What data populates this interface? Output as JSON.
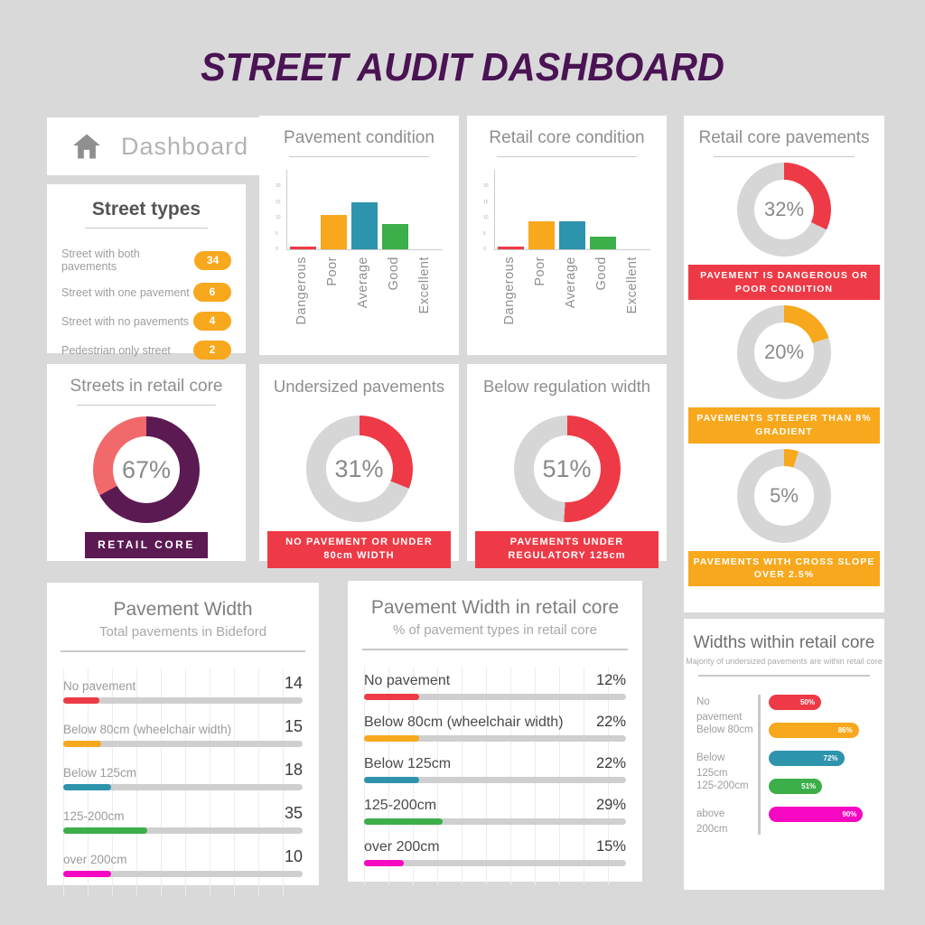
{
  "page": {
    "title": "STREET AUDIT DASHBOARD"
  },
  "colors": {
    "red": "#ee3a46",
    "orange": "#f7a81d",
    "teal": "#2e93ac",
    "green": "#3cae4a",
    "magenta": "#f607c2",
    "purple": "#5b1a52",
    "salmon": "#f2696b",
    "ring_gray": "#d6d6d6",
    "title": "#4a1353"
  },
  "dashboard_card": {
    "label": "Dashboard",
    "icon": "home-icon"
  },
  "street_types": {
    "title": "Street types",
    "items": [
      {
        "label": "Street with both pavements",
        "value": "34"
      },
      {
        "label": "Street with one pavement",
        "value": "6"
      },
      {
        "label": "Street with no pavements",
        "value": "4"
      },
      {
        "label": "Pedestrian only street",
        "value": "2"
      }
    ]
  },
  "chart_data": [
    {
      "id": "pavement_condition",
      "type": "bar",
      "title": "Pavement condition",
      "categories": [
        "Dangerous",
        "Poor",
        "Average",
        "Good",
        "Excellent"
      ],
      "values": [
        1,
        11,
        15,
        8,
        0
      ],
      "colors": [
        "#ee3a46",
        "#f7a81d",
        "#2e93ac",
        "#3cae4a",
        "#2e93ac"
      ],
      "ylim": [
        0,
        20
      ],
      "yticks": [
        0,
        5,
        10,
        15,
        20
      ],
      "grid": false,
      "legend": "none"
    },
    {
      "id": "retail_core_condition",
      "type": "bar",
      "title": "Retail core condition",
      "categories": [
        "Dangerous",
        "Poor",
        "Average",
        "Good",
        "Excellent"
      ],
      "values": [
        1,
        9,
        9,
        4,
        0
      ],
      "colors": [
        "#ee3a46",
        "#f7a81d",
        "#2e93ac",
        "#3cae4a",
        "#2e93ac"
      ],
      "ylim": [
        0,
        20
      ],
      "yticks": [
        0,
        5,
        10,
        15,
        20
      ],
      "grid": false,
      "legend": "none"
    },
    {
      "id": "streets_in_retail_core",
      "type": "donut",
      "title": "Streets in retail core",
      "value_pct": 67,
      "center_label": "67%",
      "segment_color": "#5b1a52",
      "remainder_color": "#f2696b",
      "badge": {
        "text": "RETAIL CORE",
        "color": "#5b1a52"
      }
    },
    {
      "id": "undersized_pavements",
      "type": "donut",
      "title": "Undersized pavements",
      "value_pct": 31,
      "center_label": "31%",
      "segment_color": "#ee3a46",
      "remainder_color": "#d6d6d6",
      "badge": {
        "text": "NO PAVEMENT OR UNDER 80cm WIDTH",
        "color": "#ee3a46"
      }
    },
    {
      "id": "below_regulation_width",
      "type": "donut",
      "title": "Below regulation width",
      "value_pct": 51,
      "center_label": "51%",
      "segment_color": "#ee3a46",
      "remainder_color": "#d6d6d6",
      "badge": {
        "text": "PAVEMENTS UNDER REGULATORY 125cm",
        "color": "#ee3a46"
      }
    },
    {
      "id": "retail_core_pavements",
      "type": "donut-group",
      "title": "Retail core pavements",
      "donuts": [
        {
          "value_pct": 32,
          "center_label": "32%",
          "segment_color": "#ee3a46",
          "remainder_color": "#d6d6d6",
          "badge": {
            "text": "PAVEMENT IS DANGEROUS OR POOR CONDITION",
            "color": "#ee3a46"
          }
        },
        {
          "value_pct": 20,
          "center_label": "20%",
          "segment_color": "#f7a81d",
          "remainder_color": "#d6d6d6",
          "badge": {
            "text": "PAVEMENTS STEEPER THAN 8% GRADIENT",
            "color": "#f7a81d"
          }
        },
        {
          "value_pct": 5,
          "center_label": "5%",
          "segment_color": "#f7a81d",
          "remainder_color": "#d6d6d6",
          "badge": {
            "text": "PAVEMENTS WITH CROSS SLOPE OVER 2.5%",
            "color": "#f7a81d"
          }
        }
      ]
    },
    {
      "id": "pavement_width",
      "type": "hbar",
      "title": "Pavement Width",
      "subtitle": "Total pavements in Bideford",
      "rows": [
        {
          "label": "No pavement",
          "value": 14,
          "display": "14",
          "color": "#ee3a46",
          "fill_pct": 15
        },
        {
          "label": "Below 80cm (wheelchair width)",
          "value": 15,
          "display": "15",
          "color": "#f7a81d",
          "fill_pct": 16
        },
        {
          "label": "Below 125cm",
          "value": 18,
          "display": "18",
          "color": "#2e93ac",
          "fill_pct": 20
        },
        {
          "label": "125-200cm",
          "value": 35,
          "display": "35",
          "color": "#3cae4a",
          "fill_pct": 35
        },
        {
          "label": "over 200cm",
          "value": 10,
          "display": "10",
          "color": "#f607c2",
          "fill_pct": 20
        }
      ]
    },
    {
      "id": "pavement_width_retail_core",
      "type": "hbar",
      "title": "Pavement Width in retail core",
      "subtitle": "% of pavement types in retail core",
      "rows": [
        {
          "label": "No pavement",
          "value": 12,
          "display": "12%",
          "color": "#ee3a46",
          "fill_pct": 21
        },
        {
          "label": "Below 80cm (wheelchair width)",
          "value": 22,
          "display": "22%",
          "color": "#f7a81d",
          "fill_pct": 21
        },
        {
          "label": "Below 125cm",
          "value": 22,
          "display": "22%",
          "color": "#2e93ac",
          "fill_pct": 21
        },
        {
          "label": "125-200cm",
          "value": 29,
          "display": "29%",
          "color": "#3cae4a",
          "fill_pct": 30
        },
        {
          "label": "over 200cm",
          "value": 15,
          "display": "15%",
          "color": "#f607c2",
          "fill_pct": 15
        }
      ]
    },
    {
      "id": "widths_within_retail_core",
      "type": "pill-bar",
      "title": "Widths within retail core",
      "subtitle": "Majority of undersized pavements are within retail core",
      "rows": [
        {
          "label": "No pavement",
          "value": 50,
          "display": "50%",
          "color": "#ee3a46"
        },
        {
          "label": "Below 80cm",
          "value": 86,
          "display": "86%",
          "color": "#f7a81d"
        },
        {
          "label": "Below 125cm",
          "value": 72,
          "display": "72%",
          "color": "#2e93ac"
        },
        {
          "label": "125-200cm",
          "value": 51,
          "display": "51%",
          "color": "#3cae4a"
        },
        {
          "label": "above 200cm",
          "value": 90,
          "display": "90%",
          "color": "#f607c2"
        }
      ]
    }
  ]
}
